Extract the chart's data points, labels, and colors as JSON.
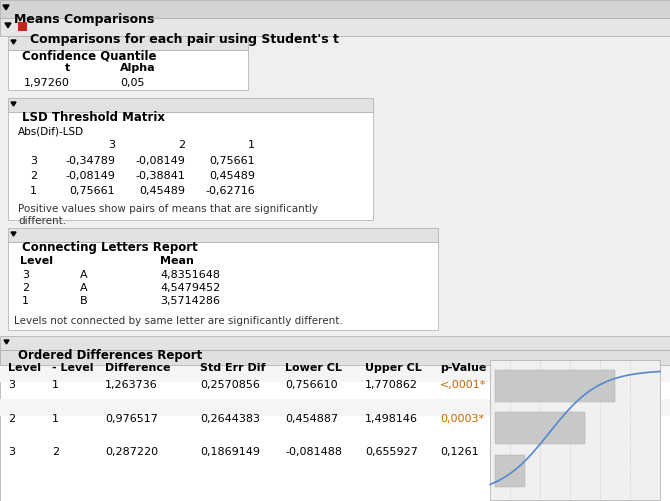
{
  "title_main": "Means Comparisons",
  "title_sub": "Comparisons for each pair using Student's t",
  "bg_color": "#efefef",
  "white_bg": "#ffffff",
  "header_bg": "#d4d4d4",
  "section_header_bg": "#e2e2e2",
  "orange_color": "#cc6600",
  "confidence_quantile": {
    "values": [
      "1,97260",
      "0,05"
    ]
  },
  "lsd_matrix": {
    "label": "Abs(Dif)-LSD",
    "col_headers": [
      "3",
      "2",
      "1"
    ],
    "row_headers": [
      "3",
      "2",
      "1"
    ],
    "values": [
      [
        "-0,34789",
        "-0,08149",
        "0,75661"
      ],
      [
        "-0,08149",
        "-0,38841",
        "0,45489"
      ],
      [
        "0,75661",
        "0,45489",
        "-0,62716"
      ]
    ]
  },
  "lsd_note1": "Positive values show pairs of means that are significantly",
  "lsd_note2": "different.",
  "connecting_letters": {
    "rows": [
      [
        "3",
        "A",
        "4,8351648"
      ],
      [
        "2",
        "A",
        "4,5479452"
      ],
      [
        "1",
        "B",
        "3,5714286"
      ]
    ],
    "note": "Levels not connected by same letter are significantly different."
  },
  "ordered_differences": {
    "col_headers": [
      "Level",
      "- Level",
      "Difference",
      "Std Err Dif",
      "Lower CL",
      "Upper CL",
      "p-Value"
    ],
    "rows": [
      [
        "3",
        "1",
        "1,263736",
        "0,2570856",
        "0,756610",
        "1,770862",
        "<,0001*"
      ],
      [
        "2",
        "1",
        "0,976517",
        "0,2644383",
        "0,454887",
        "1,498146",
        "0,0003*"
      ],
      [
        "3",
        "2",
        "0,287220",
        "0,1869149",
        "-0,081488",
        "0,655927",
        "0,1261"
      ]
    ],
    "pvalue_colors": [
      "#cc6600",
      "#cc6600",
      "#000000"
    ]
  }
}
